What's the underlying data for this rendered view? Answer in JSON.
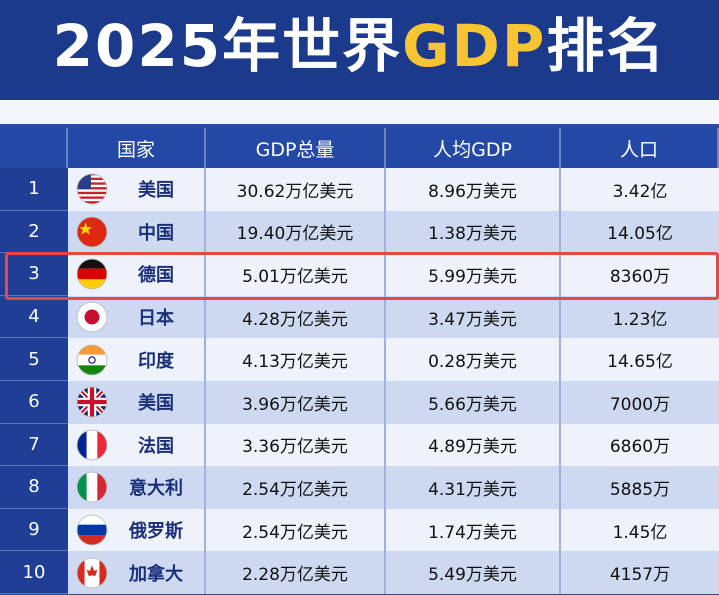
{
  "header": {
    "title": [
      "2025年世界",
      "GDP",
      "排名"
    ]
  },
  "table": {
    "columns": [
      "国家",
      "GDP总量",
      "人均GDP",
      "人口"
    ],
    "rows": [
      [
        1,
        "美国",
        "30.62万亿美元",
        "8.96万美元",
        "3.42亿"
      ],
      [
        2,
        "中国",
        "19.40万亿美元",
        "1.38万美元",
        "14.05亿"
      ],
      [
        3,
        "德国",
        "5.01万亿美元",
        "5.99万美元",
        "8360万"
      ],
      [
        4,
        "日本",
        "4.28万亿美元",
        "3.47万美元",
        "1.23亿"
      ],
      [
        5,
        "印度",
        "4.13万亿美元",
        "0.28万美元",
        "14.65亿"
      ],
      [
        6,
        "美国",
        "3.96万亿美元",
        "5.66万美元",
        "7000万"
      ],
      [
        7,
        "法国",
        "3.36万亿美元",
        "4.89万美元",
        "6860万"
      ],
      [
        8,
        "意大利",
        "2.54万亿美元",
        "4.31万美元",
        "5885万"
      ],
      [
        9,
        "俄罗斯",
        "2.54万亿美元",
        "1.74万美元",
        "1.45亿"
      ],
      [
        10,
        "加拿大",
        "2.28万亿美元",
        "5.49万美元",
        "4157万"
      ]
    ]
  }
}
